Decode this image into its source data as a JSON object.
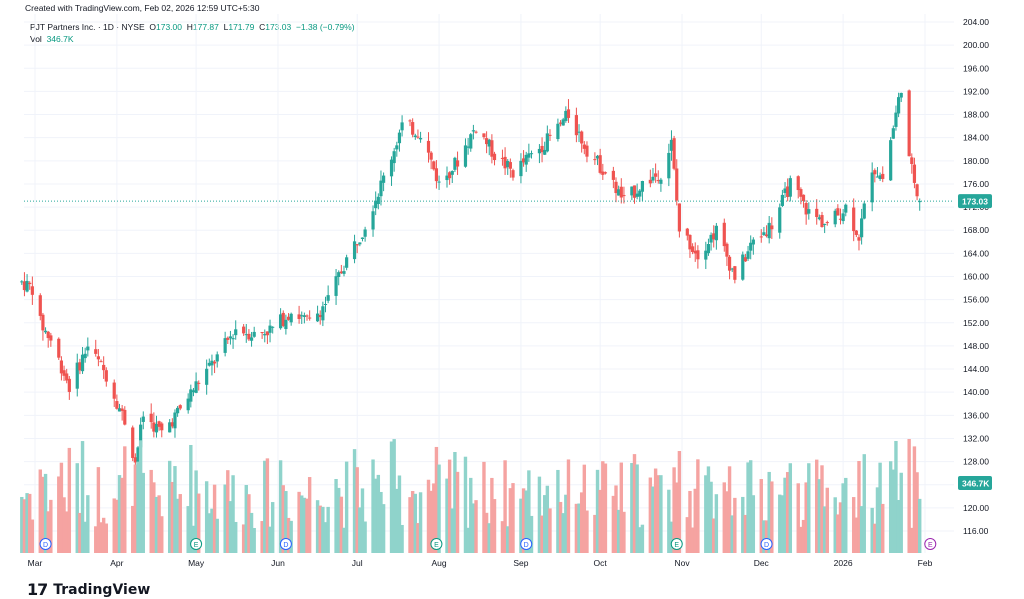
{
  "header": {
    "created_text": "Created with TradingView.com, Feb 02, 2026 12:59 UTC+5:30",
    "symbol": "PJT Partners Inc. · 1D · NYSE",
    "open_label": "O",
    "open": "173.00",
    "high_label": "H",
    "high": "177.87",
    "low_label": "L",
    "low": "171.79",
    "close_label": "C",
    "close": "173.03",
    "change": "−1.38 (−0.79%)",
    "vol_label": "Vol",
    "vol": "346.7K"
  },
  "footer": {
    "logo": "17",
    "brand": "TradingView"
  },
  "colors": {
    "up": "#26a69a",
    "down": "#ef5350",
    "vol_up": "#8fd3cb",
    "vol_down": "#f5a3a1",
    "grid": "#f0f3fa",
    "price_line": "#26a69a"
  },
  "chart_data": {
    "type": "candlestick",
    "price_axis": {
      "min": 116,
      "max": 204,
      "step": 4,
      "ticks": [
        "204.00",
        "200.00",
        "196.00",
        "192.00",
        "188.00",
        "184.00",
        "180.00",
        "176.00",
        "172.00",
        "168.00",
        "164.00",
        "160.00",
        "156.00",
        "152.00",
        "148.00",
        "144.00",
        "140.00",
        "136.00",
        "132.00",
        "128.00",
        "124.00",
        "120.00",
        "116.00"
      ]
    },
    "last_price_label": "173.03",
    "last_volume_label": "346.7K",
    "x_axis_labels": [
      "Mar",
      "Apr",
      "May",
      "Jun",
      "Jul",
      "Aug",
      "Sep",
      "Oct",
      "Nov",
      "Dec",
      "2026",
      "Feb"
    ],
    "x_label_dates": [
      "2025-03-01",
      "2025-04-01",
      "2025-05-01",
      "2025-06-01",
      "2025-07-01",
      "2025-08-01",
      "2025-09-01",
      "2025-10-01",
      "2025-11-01",
      "2025-12-01",
      "2026-01-01",
      "2026-02-01"
    ],
    "events": [
      {
        "type": "D",
        "date": "2025-03-05"
      },
      {
        "type": "E",
        "date": "2025-05-01"
      },
      {
        "type": "D",
        "date": "2025-06-04"
      },
      {
        "type": "E",
        "date": "2025-07-31"
      },
      {
        "type": "D",
        "date": "2025-09-03"
      },
      {
        "type": "E",
        "date": "2025-10-30"
      },
      {
        "type": "D",
        "date": "2025-12-03"
      },
      {
        "type": "E",
        "date": "2026-02-03"
      }
    ],
    "anchors": [
      [
        "2025-02-24",
        159.0
      ],
      [
        "2025-02-28",
        158.0
      ],
      [
        "2025-03-03",
        152.0
      ],
      [
        "2025-03-07",
        149.0
      ],
      [
        "2025-03-14",
        141.0
      ],
      [
        "2025-03-21",
        148.0
      ],
      [
        "2025-03-28",
        143.0
      ],
      [
        "2025-04-04",
        135.0
      ],
      [
        "2025-04-08",
        128.0
      ],
      [
        "2025-04-11",
        136.0
      ],
      [
        "2025-04-18",
        133.0
      ],
      [
        "2025-04-25",
        137.0
      ],
      [
        "2025-05-02",
        142.0
      ],
      [
        "2025-05-09",
        146.0
      ],
      [
        "2025-05-16",
        151.0
      ],
      [
        "2025-05-23",
        150.0
      ],
      [
        "2025-05-30",
        151.0
      ],
      [
        "2025-06-06",
        154.0
      ],
      [
        "2025-06-13",
        152.0
      ],
      [
        "2025-06-20",
        156.0
      ],
      [
        "2025-06-27",
        163.0
      ],
      [
        "2025-07-03",
        168.0
      ],
      [
        "2025-07-11",
        177.0
      ],
      [
        "2025-07-18",
        186.0
      ],
      [
        "2025-07-25",
        185.0
      ],
      [
        "2025-08-01",
        176.0
      ],
      [
        "2025-08-08",
        180.0
      ],
      [
        "2025-08-15",
        186.0
      ],
      [
        "2025-08-22",
        181.0
      ],
      [
        "2025-08-29",
        178.0
      ],
      [
        "2025-09-05",
        181.0
      ],
      [
        "2025-09-12",
        184.0
      ],
      [
        "2025-09-19",
        188.0
      ],
      [
        "2025-09-26",
        182.0
      ],
      [
        "2025-10-03",
        178.0
      ],
      [
        "2025-10-10",
        173.0
      ],
      [
        "2025-10-17",
        176.0
      ],
      [
        "2025-10-24",
        178.0
      ],
      [
        "2025-10-28",
        183.0
      ],
      [
        "2025-10-31",
        168.0
      ],
      [
        "2025-11-07",
        164.0
      ],
      [
        "2025-11-14",
        168.0
      ],
      [
        "2025-11-21",
        160.0
      ],
      [
        "2025-11-28",
        166.0
      ],
      [
        "2025-12-05",
        169.0
      ],
      [
        "2025-12-12",
        176.0
      ],
      [
        "2025-12-19",
        171.0
      ],
      [
        "2025-12-26",
        169.0
      ],
      [
        "2026-01-02",
        172.0
      ],
      [
        "2026-01-07",
        167.0
      ],
      [
        "2026-01-12",
        179.0
      ],
      [
        "2026-01-16",
        177.0
      ],
      [
        "2026-01-21",
        188.0
      ],
      [
        "2026-01-23",
        193.0
      ],
      [
        "2026-01-26",
        180.0
      ],
      [
        "2026-01-29",
        175.0
      ],
      [
        "2026-01-30",
        173.03
      ]
    ],
    "volume_base": 346.7
  }
}
